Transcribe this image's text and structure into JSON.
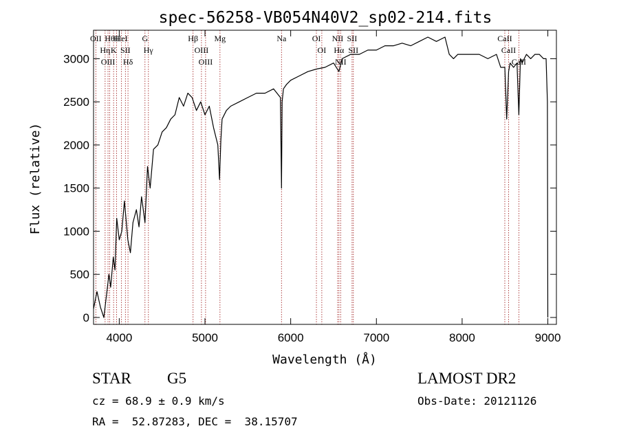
{
  "chart_data": {
    "type": "line",
    "title": "spec-56258-VB054N40V2_sp02-214.fits",
    "xlabel": "Wavelength (Å)",
    "ylabel": "Flux (relative)",
    "xlim": [
      3700,
      9100
    ],
    "ylim": [
      -80,
      3330
    ],
    "x_ticks": [
      4000,
      5000,
      6000,
      7000,
      8000,
      9000
    ],
    "x_tick_labels": [
      "4000",
      "5000",
      "6000",
      "7000",
      "8000",
      "9000"
    ],
    "y_ticks": [
      0,
      500,
      1000,
      1500,
      2000,
      2500,
      3000
    ],
    "y_tick_labels": [
      "0",
      "500",
      "1000",
      "1500",
      "2000",
      "2500",
      "3000"
    ],
    "grid": false,
    "line_color": "#000000",
    "marker_color": "#a52a2a",
    "series": [
      {
        "x": [
          3700,
          3740,
          3780,
          3820,
          3850,
          3880,
          3900,
          3930,
          3950,
          3970,
          4000,
          4030,
          4060,
          4100,
          4130,
          4160,
          4200,
          4230,
          4260,
          4300,
          4330,
          4360,
          4400,
          4450,
          4500,
          4550,
          4600,
          4650,
          4700,
          4750,
          4800,
          4850,
          4900,
          4950,
          5000,
          5050,
          5100,
          5150,
          5170,
          5185,
          5200,
          5250,
          5300,
          5400,
          5500,
          5600,
          5700,
          5800,
          5880,
          5893,
          5900,
          5915,
          5950,
          6000,
          6100,
          6200,
          6300,
          6400,
          6500,
          6563,
          6600,
          6700,
          6800,
          6900,
          7000,
          7100,
          7200,
          7300,
          7400,
          7500,
          7600,
          7700,
          7800,
          7850,
          7900,
          7950,
          8000,
          8100,
          8200,
          8300,
          8400,
          8450,
          8498,
          8520,
          8542,
          8560,
          8600,
          8640,
          8662,
          8680,
          8700,
          8750,
          8800,
          8850,
          8900,
          8950,
          8980,
          8995,
          9000
        ],
        "y": [
          100,
          300,
          120,
          0,
          250,
          500,
          350,
          700,
          550,
          1150,
          900,
          1000,
          1350,
          900,
          750,
          1100,
          1250,
          1050,
          1400,
          1100,
          1750,
          1500,
          1950,
          2000,
          2150,
          2200,
          2300,
          2350,
          2550,
          2450,
          2600,
          2550,
          2400,
          2500,
          2350,
          2450,
          2200,
          2000,
          1600,
          2050,
          2300,
          2400,
          2450,
          2500,
          2550,
          2600,
          2600,
          2650,
          2550,
          1500,
          2500,
          2650,
          2700,
          2750,
          2800,
          2850,
          2880,
          2900,
          2950,
          2850,
          3000,
          3050,
          3050,
          3100,
          3100,
          3150,
          3150,
          3180,
          3150,
          3200,
          3250,
          3200,
          3250,
          3050,
          3000,
          3050,
          3050,
          3050,
          3050,
          3000,
          3050,
          2900,
          2900,
          2300,
          2850,
          2950,
          2900,
          2950,
          2350,
          3000,
          2950,
          3050,
          3000,
          3050,
          3050,
          3000,
          3000,
          2500,
          0
        ]
      }
    ],
    "line_markers": [
      {
        "x": 3727,
        "label": "OII"
      },
      {
        "x": 3835,
        "label": "Hη"
      },
      {
        "x": 3869,
        "label": "OIII"
      },
      {
        "x": 3889,
        "label": "Hθ"
      },
      {
        "x": 3934,
        "label": "K"
      },
      {
        "x": 3969,
        "label": "H"
      },
      {
        "x": 4026,
        "label": "HeI"
      },
      {
        "x": 4072,
        "label": "SII"
      },
      {
        "x": 4102,
        "label": "Hδ"
      },
      {
        "x": 4300,
        "label": "G"
      },
      {
        "x": 4340,
        "label": "Hγ"
      },
      {
        "x": 4861,
        "label": "Hβ"
      },
      {
        "x": 4959,
        "label": "OIII"
      },
      {
        "x": 5007,
        "label": "OIII"
      },
      {
        "x": 5175,
        "label": "Mg"
      },
      {
        "x": 5893,
        "label": "Na"
      },
      {
        "x": 6300,
        "label": "OI"
      },
      {
        "x": 6363,
        "label": "OI"
      },
      {
        "x": 6548,
        "label": "NII"
      },
      {
        "x": 6563,
        "label": "Hα"
      },
      {
        "x": 6583,
        "label": "NII"
      },
      {
        "x": 6716,
        "label": "SII"
      },
      {
        "x": 6731,
        "label": "SII"
      },
      {
        "x": 8498,
        "label": "CaII"
      },
      {
        "x": 8542,
        "label": "CaII"
      },
      {
        "x": 8662,
        "label": "CaII"
      }
    ]
  },
  "info": {
    "class_label": "STAR",
    "subclass_label": "G5",
    "survey_label": "LAMOST DR2",
    "redshift_text": "cz = 68.9 ± 0.9 km/s",
    "obs_date_text": "Obs-Date: 20121126",
    "coords_text": "RA =  52.87283, DEC =  38.15707"
  }
}
